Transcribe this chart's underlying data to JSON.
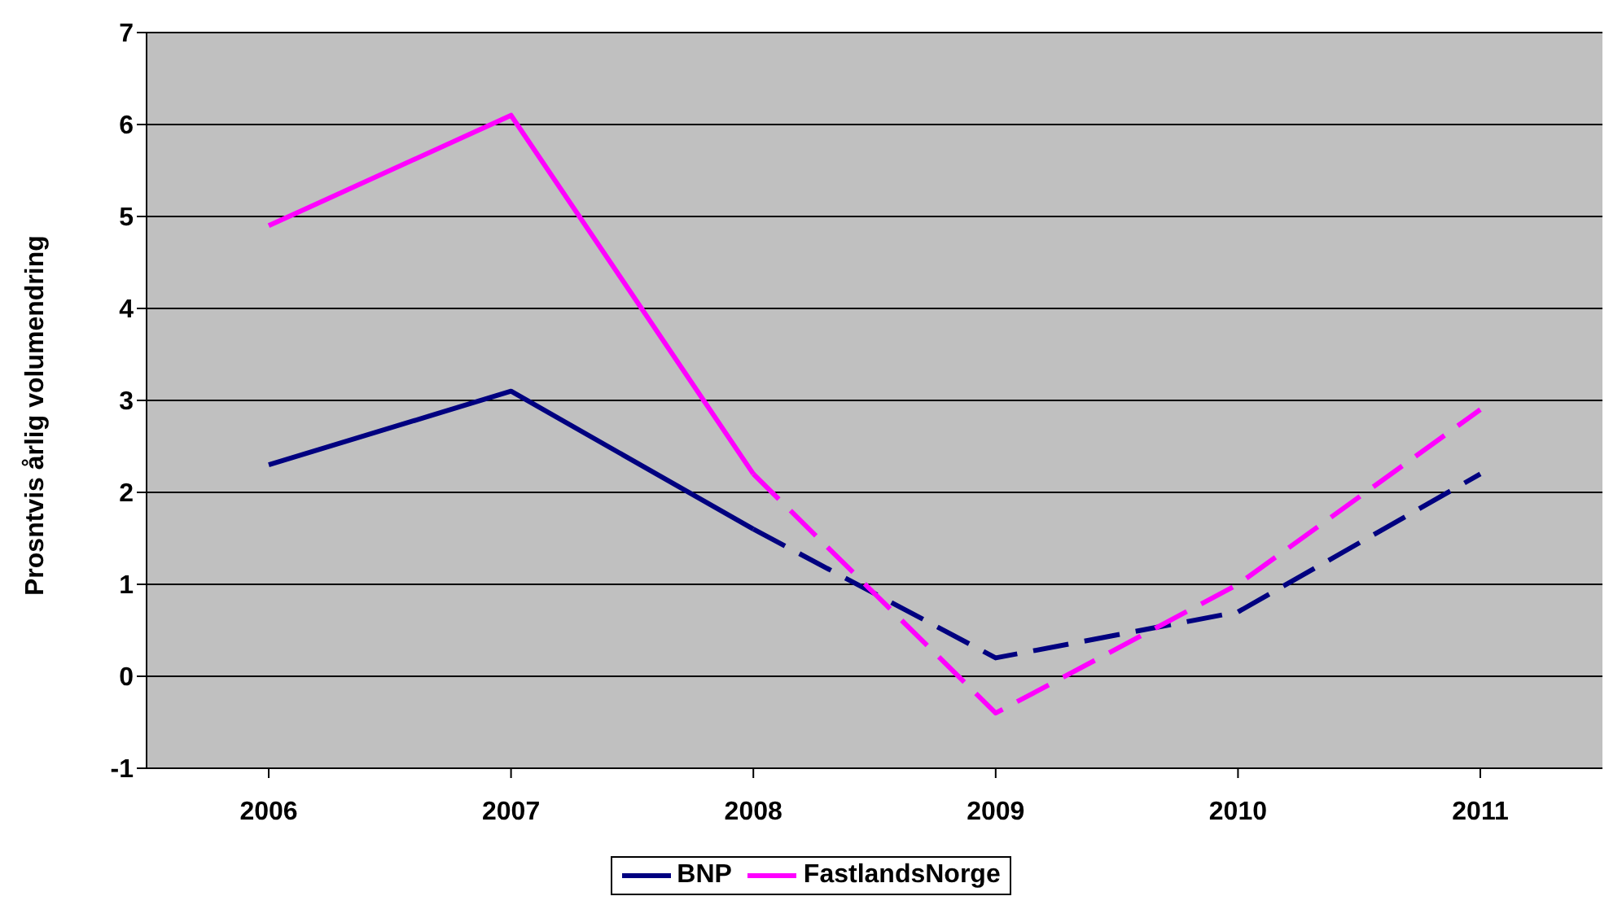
{
  "chart_data": {
    "type": "line",
    "ylabel": "Prosntvis årlig volumendring",
    "categories": [
      "2006",
      "2007",
      "2008",
      "2009",
      "2010",
      "2011"
    ],
    "series": [
      {
        "name": "BNP",
        "color": "#000080",
        "values": [
          2.3,
          3.1,
          1.6,
          null,
          null,
          null
        ],
        "line_style": "solid"
      },
      {
        "color": "#000080",
        "values": [
          null,
          null,
          1.6,
          0.2,
          0.7,
          2.2
        ],
        "line_style": "dashed"
      },
      {
        "name": "FastlandsNorge",
        "color": "#ff00ff",
        "values": [
          4.9,
          6.1,
          2.2,
          null,
          null,
          null
        ],
        "line_style": "solid"
      },
      {
        "color": "#ff00ff",
        "values": [
          null,
          null,
          2.2,
          -0.4,
          1.0,
          2.9
        ],
        "line_style": "dashed"
      }
    ],
    "ylim": [
      -1,
      7
    ],
    "yticks": [
      -1,
      0,
      1,
      2,
      3,
      4,
      5,
      6,
      7
    ],
    "grid": "y",
    "legend": "bottom",
    "marker": "none"
  }
}
